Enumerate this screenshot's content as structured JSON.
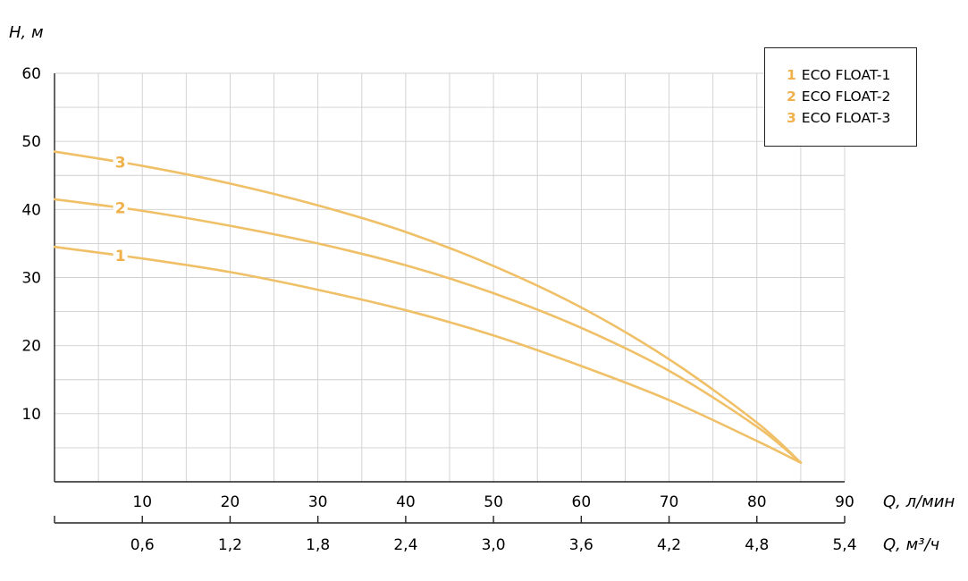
{
  "chart_data": {
    "type": "line",
    "ylabel": "H, м",
    "xlabel": "Q, л/мин",
    "xlabel2": "Q, м³/ч",
    "ylim": [
      0,
      60
    ],
    "xlim": [
      0,
      90
    ],
    "yticks": [
      "10",
      "20",
      "30",
      "40",
      "50",
      "60"
    ],
    "xticks": [
      "10",
      "20",
      "30",
      "40",
      "50",
      "60",
      "70",
      "80",
      "90"
    ],
    "xticks2": [
      "0,6",
      "1,2",
      "1,8",
      "2,4",
      "3,0",
      "3,6",
      "4,2",
      "4,8",
      "5,4"
    ],
    "grid": true,
    "line_color": "#f0c068",
    "label_color": "#f0b04a",
    "series": [
      {
        "name": "ECO FLOAT-1",
        "label": "1",
        "x": [
          0,
          10,
          20,
          30,
          40,
          50,
          60,
          70,
          80,
          85
        ],
        "y": [
          34.5,
          32.8,
          30.8,
          28.2,
          25.2,
          21.5,
          17.0,
          12.0,
          6.0,
          2.8
        ]
      },
      {
        "name": "ECO FLOAT-2",
        "label": "2",
        "x": [
          0,
          10,
          20,
          30,
          40,
          50,
          60,
          70,
          80,
          85
        ],
        "y": [
          41.5,
          39.8,
          37.6,
          35.0,
          31.8,
          27.7,
          22.6,
          16.3,
          8.1,
          2.8
        ]
      },
      {
        "name": "ECO FLOAT-3",
        "label": "3",
        "x": [
          0,
          10,
          20,
          30,
          40,
          50,
          60,
          70,
          80,
          85
        ],
        "y": [
          48.5,
          46.4,
          43.8,
          40.6,
          36.7,
          31.7,
          25.6,
          18.0,
          8.7,
          2.8
        ]
      }
    ]
  },
  "legend": {
    "items": [
      {
        "num": "1",
        "text": "ECO FLOAT-1"
      },
      {
        "num": "2",
        "text": "ECO FLOAT-2"
      },
      {
        "num": "3",
        "text": "ECO FLOAT-3"
      }
    ]
  }
}
